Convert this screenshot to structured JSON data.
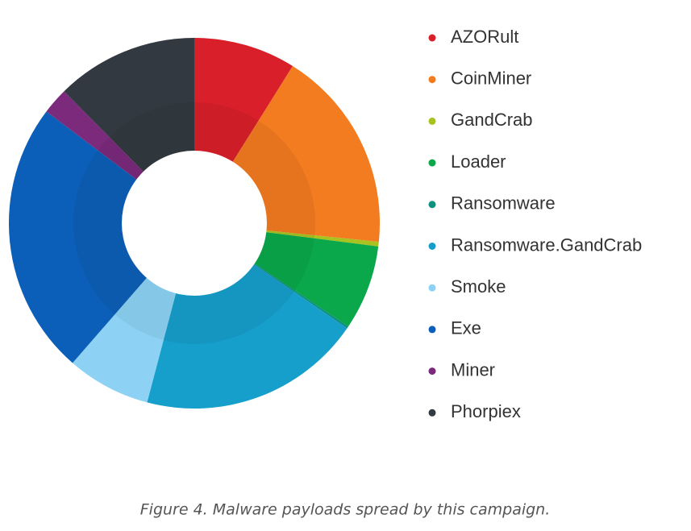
{
  "chart_data": {
    "type": "donut",
    "categories": [
      "AZORult",
      "CoinMiner",
      "GandCrab",
      "Loader",
      "Ransomware",
      "Ransomware.GandCrab",
      "Smoke",
      "Exe",
      "Miner",
      "Phorpiex"
    ],
    "values": [
      8.9,
      17.7,
      0.4,
      7.4,
      0.2,
      19.5,
      7.3,
      23.9,
      2.3,
      12.4
    ],
    "colors": [
      "#d91f29",
      "#f37b20",
      "#a9c21f",
      "#0aa84b",
      "#0d9180",
      "#169fcb",
      "#8dd2f4",
      "#0c5fb8",
      "#7b2a7c",
      "#323940"
    ],
    "caption": "Figure 4. Malware payloads spread by this campaign."
  }
}
